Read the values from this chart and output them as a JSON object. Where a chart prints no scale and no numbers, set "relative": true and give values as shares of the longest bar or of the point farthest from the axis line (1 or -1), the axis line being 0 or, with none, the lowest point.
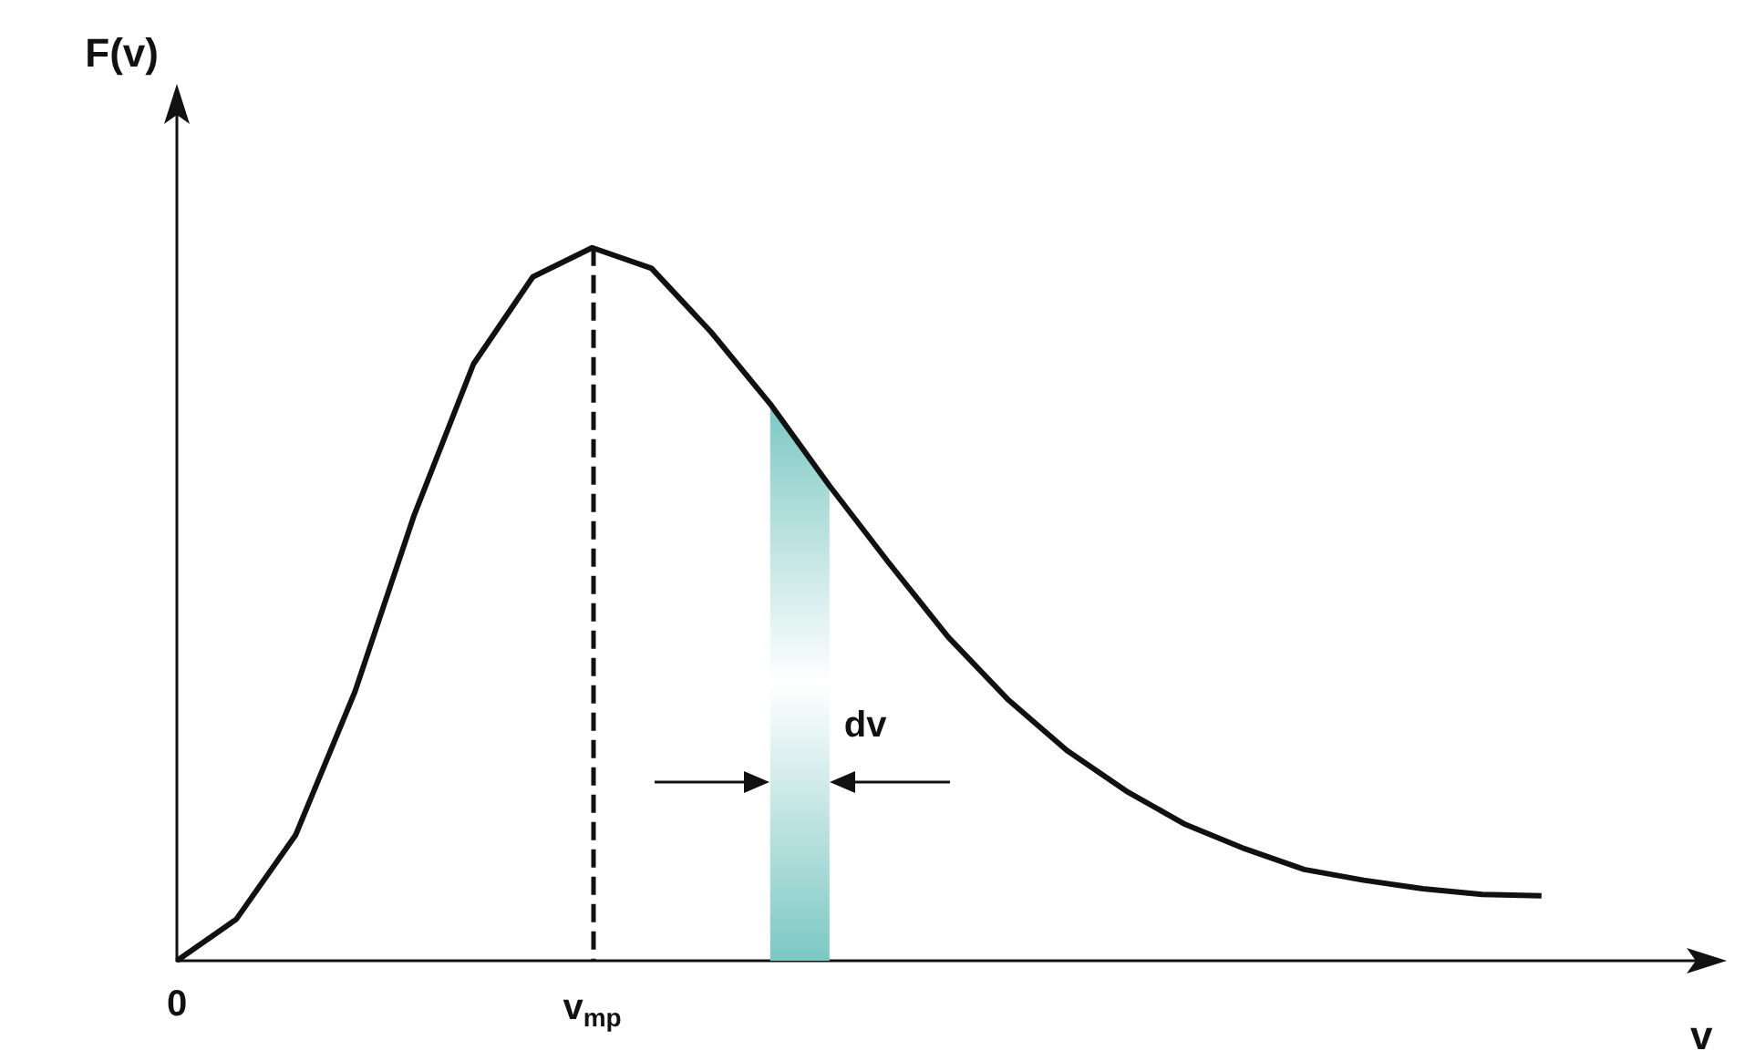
{
  "chart_data": {
    "type": "line",
    "relative": true,
    "xlabel": "v",
    "ylabel": "F(v)",
    "categories": [
      "0",
      null,
      null,
      null,
      null,
      null,
      null,
      "v$_{mp}$",
      null,
      null,
      null,
      null,
      null,
      null,
      null,
      null,
      null,
      null,
      null,
      null,
      null,
      null,
      null,
      null
    ],
    "series": [
      {
        "color": "#111111",
        "values": [
          0,
          0.058,
          0.176,
          0.377,
          0.625,
          0.837,
          0.959,
          1,
          0.971,
          0.882,
          0.781,
          0.666,
          0.558,
          0.454,
          0.367,
          0.295,
          0.238,
          0.191,
          0.157,
          0.128,
          0.113,
          0.101,
          0.093,
          0.091
        ]
      },
      {
        "type": "area",
        "color": "#7cc8c3",
        "values": [
          null,
          null,
          null,
          null,
          null,
          null,
          null,
          null,
          null,
          null,
          0.781,
          0.666,
          null,
          null,
          null,
          null,
          null,
          null,
          null,
          null,
          null,
          null,
          null,
          null
        ]
      }
    ],
    "ref_lines": [
      {
        "axis": "x",
        "value": "v$_{mp}$",
        "line_style": "dashed"
      }
    ],
    "annotations": [
      "dv"
    ],
    "marker": "none",
    "line_style": "solid",
    "grid": false
  }
}
